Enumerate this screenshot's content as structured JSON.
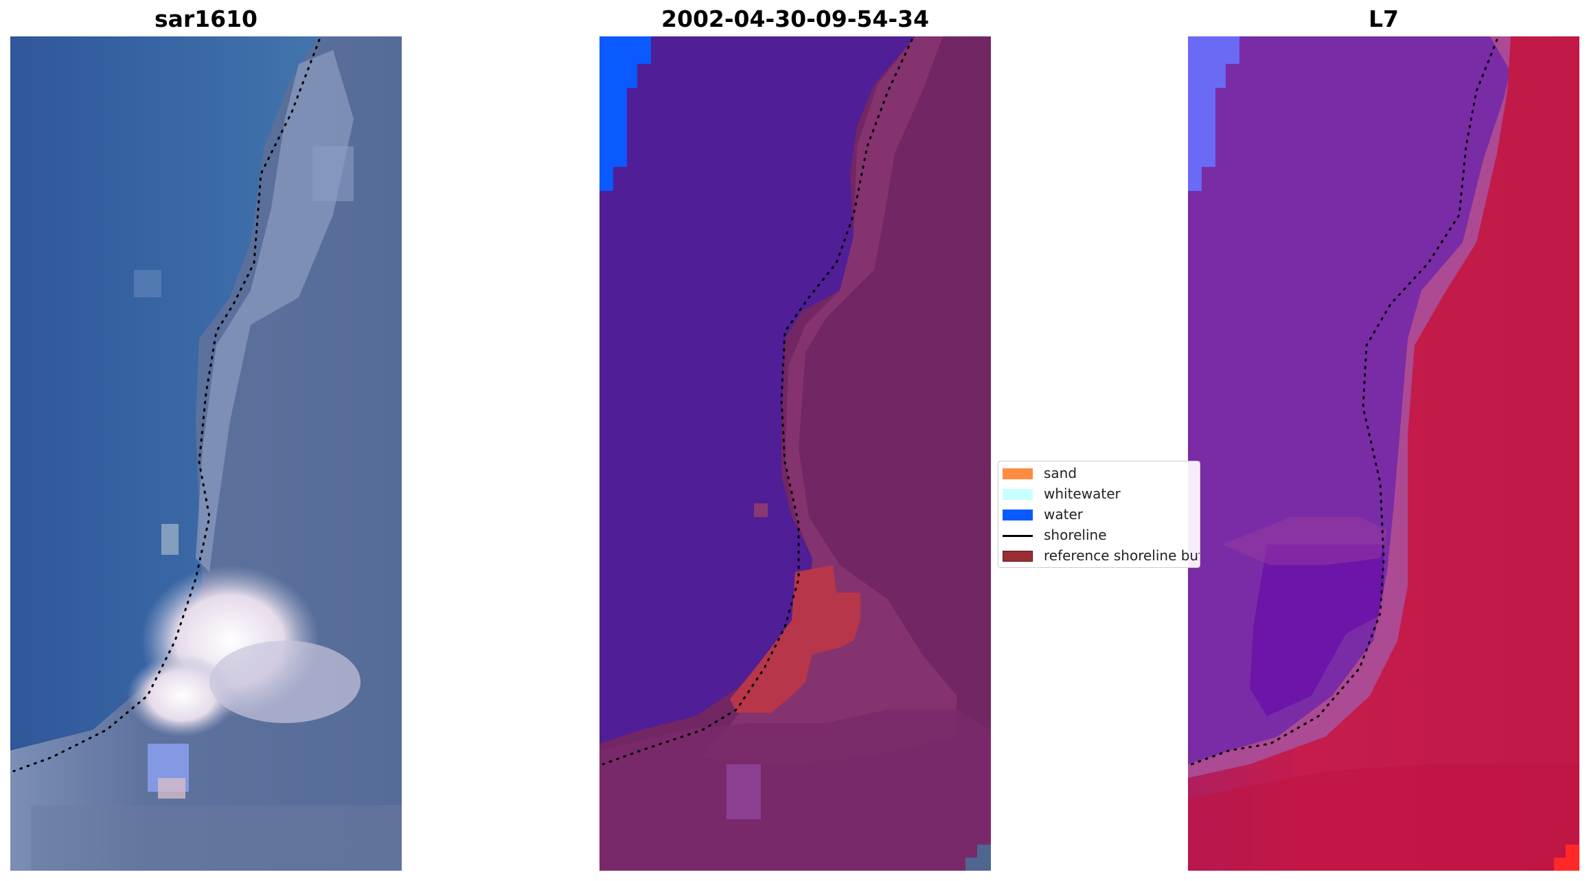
{
  "panels": [
    {
      "title": "sar1610"
    },
    {
      "title": "2002-04-30-09-54-34"
    },
    {
      "title": "L7"
    }
  ],
  "legend": {
    "items": [
      {
        "label": "sand",
        "kind": "patch",
        "color": "#ff8c40"
      },
      {
        "label": "whitewater",
        "kind": "patch",
        "color": "#c8ffff"
      },
      {
        "label": "water",
        "kind": "patch",
        "color": "#0a5aff"
      },
      {
        "label": "shoreline",
        "kind": "line",
        "color": "#000000"
      },
      {
        "label": "reference shoreline buffer",
        "kind": "patch",
        "color": "#9b2e35"
      }
    ]
  },
  "colors": {
    "rgb_ocean": "#3a5c98",
    "rgb_coast": "#3f6ea8",
    "rgb_land": "#5a6f98",
    "rgb_bright": "#f3ecf2",
    "classified_water": "#501e96",
    "classified_land": "#722663",
    "classified_buffer_sand": "#b8364a",
    "classified_water_blue": "#0a5aff",
    "mndwi_water": "#7a2ca6",
    "mndwi_land": "#c41c4a",
    "mndwi_deep_water": "#6a12a8",
    "mndwi_blue": "#6a6af5",
    "mndwi_red": "#ff2828"
  }
}
